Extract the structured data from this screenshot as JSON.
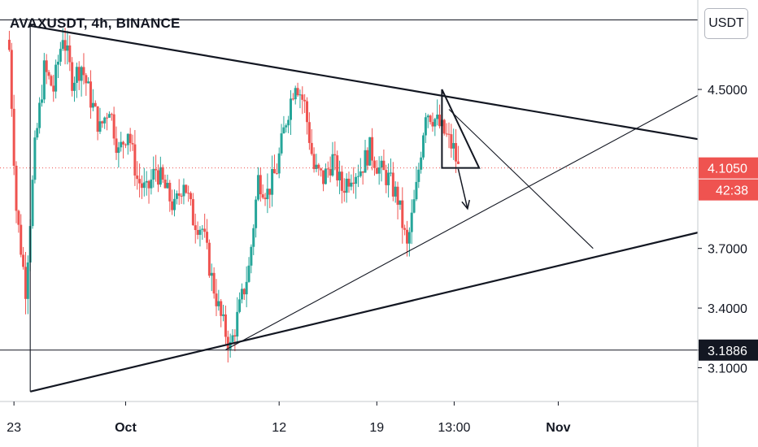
{
  "header": {
    "symbol": "AVAXUSDT, 4h, BINANCE",
    "currency": "USDT"
  },
  "colors": {
    "up": "#26a69a",
    "down": "#ef5350",
    "last_price": "#ef5350",
    "line": "#131722"
  },
  "chart_data": {
    "type": "candlestick",
    "timeframe": "4h",
    "x_tick_labels": [
      {
        "date": "2020-09-23",
        "label": "23",
        "bold": false
      },
      {
        "date": "2020-10-01",
        "label": "Oct",
        "bold": true
      },
      {
        "date": "2020-10-12",
        "label": "12",
        "bold": false
      },
      {
        "date": "2020-10-19",
        "label": "19",
        "bold": false
      },
      {
        "date": "2020-10-24 13:00",
        "label": "13:00",
        "bold": false
      },
      {
        "date": "2020-11-01",
        "label": "Nov",
        "bold": true
      }
    ],
    "y_tick_labels": [
      "4.5000",
      "3.7000",
      "3.4000",
      "3.1000"
    ],
    "ylim": [
      2.93,
      4.95
    ],
    "xlim": [
      "2020-09-22 00:00",
      "2020-11-11 00:00"
    ],
    "last_price": "4.1050",
    "countdown": "42:38",
    "marked_level": "3.1886",
    "top_level": 4.85,
    "close_path": [
      [
        "2020-09-22 16:00",
        4.7
      ],
      [
        "2020-09-23 04:00",
        3.9
      ],
      [
        "2020-09-23 20:00",
        3.5
      ],
      [
        "2020-09-24 12:00",
        4.2
      ],
      [
        "2020-09-25 04:00",
        4.6
      ],
      [
        "2020-09-25 20:00",
        4.5
      ],
      [
        "2020-09-26 12:00",
        4.78
      ],
      [
        "2020-09-27 04:00",
        4.55
      ],
      [
        "2020-09-27 20:00",
        4.62
      ],
      [
        "2020-09-28 12:00",
        4.45
      ],
      [
        "2020-09-29 04:00",
        4.3
      ],
      [
        "2020-09-29 20:00",
        4.42
      ],
      [
        "2020-09-30 12:00",
        4.18
      ],
      [
        "2020-10-01 04:00",
        4.3
      ],
      [
        "2020-10-01 20:00",
        4.05
      ],
      [
        "2020-10-02 12:00",
        3.98
      ],
      [
        "2020-10-03 04:00",
        4.1
      ],
      [
        "2020-10-03 20:00",
        4.0
      ],
      [
        "2020-10-04 12:00",
        3.9
      ],
      [
        "2020-10-05 04:00",
        4.05
      ],
      [
        "2020-10-05 20:00",
        3.85
      ],
      [
        "2020-10-06 12:00",
        3.8
      ],
      [
        "2020-10-07 04:00",
        3.55
      ],
      [
        "2020-10-07 20:00",
        3.35
      ],
      [
        "2020-10-08 12:00",
        3.2
      ],
      [
        "2020-10-09 04:00",
        3.4
      ],
      [
        "2020-10-09 20:00",
        3.6
      ],
      [
        "2020-10-10 12:00",
        4.05
      ],
      [
        "2020-10-11 04:00",
        3.98
      ],
      [
        "2020-10-11 20:00",
        4.1
      ],
      [
        "2020-10-12 12:00",
        4.35
      ],
      [
        "2020-10-13 04:00",
        4.55
      ],
      [
        "2020-10-13 20:00",
        4.42
      ],
      [
        "2020-10-14 12:00",
        4.1
      ],
      [
        "2020-10-15 04:00",
        4.05
      ],
      [
        "2020-10-15 20:00",
        4.15
      ],
      [
        "2020-10-16 12:00",
        4.0
      ],
      [
        "2020-10-17 04:00",
        4.08
      ],
      [
        "2020-10-17 20:00",
        4.1
      ],
      [
        "2020-10-18 12:00",
        4.2
      ],
      [
        "2020-10-19 04:00",
        4.1
      ],
      [
        "2020-10-19 20:00",
        4.05
      ],
      [
        "2020-10-20 12:00",
        3.95
      ],
      [
        "2020-10-21 04:00",
        3.7
      ],
      [
        "2020-10-21 20:00",
        4.0
      ],
      [
        "2020-10-22 12:00",
        4.4
      ],
      [
        "2020-10-23 04:00",
        4.35
      ],
      [
        "2020-10-23 20:00",
        4.28
      ],
      [
        "2020-10-24 12:00",
        4.2
      ],
      [
        "2020-10-24 20:00",
        4.1
      ]
    ],
    "trendlines": [
      {
        "name": "upper-resistance",
        "from": [
          "2020-09-24 04:00",
          4.82
        ],
        "to": [
          "2020-11-11 00:00",
          4.25
        ],
        "heavy": true
      },
      {
        "name": "lower-support",
        "from": [
          "2020-09-24 04:00",
          2.98
        ],
        "to": [
          "2020-11-11 00:00",
          3.78
        ],
        "heavy": true
      },
      {
        "name": "left-vertical",
        "from": [
          "2020-09-24 04:00",
          2.98
        ],
        "to": [
          "2020-09-24 04:00",
          4.82
        ],
        "heavy": false
      },
      {
        "name": "support-from-low",
        "from": [
          "2020-10-08 04:00",
          3.19
        ],
        "to": [
          "2020-11-11 00:00",
          4.47
        ],
        "heavy": false
      },
      {
        "name": "target-line",
        "from": [
          "2020-10-24 04:00",
          4.4
        ],
        "to": [
          "2020-11-03 12:00",
          3.7
        ],
        "heavy": false
      }
    ],
    "small_triangle": [
      [
        "2020-10-23 16:00",
        4.5
      ],
      [
        "2020-10-23 16:00",
        4.105
      ],
      [
        "2020-10-26 08:00",
        4.105
      ]
    ],
    "arrow": {
      "from": [
        "2020-10-24 20:00",
        4.1
      ],
      "to": [
        "2020-10-25 12:00",
        3.9
      ]
    }
  }
}
